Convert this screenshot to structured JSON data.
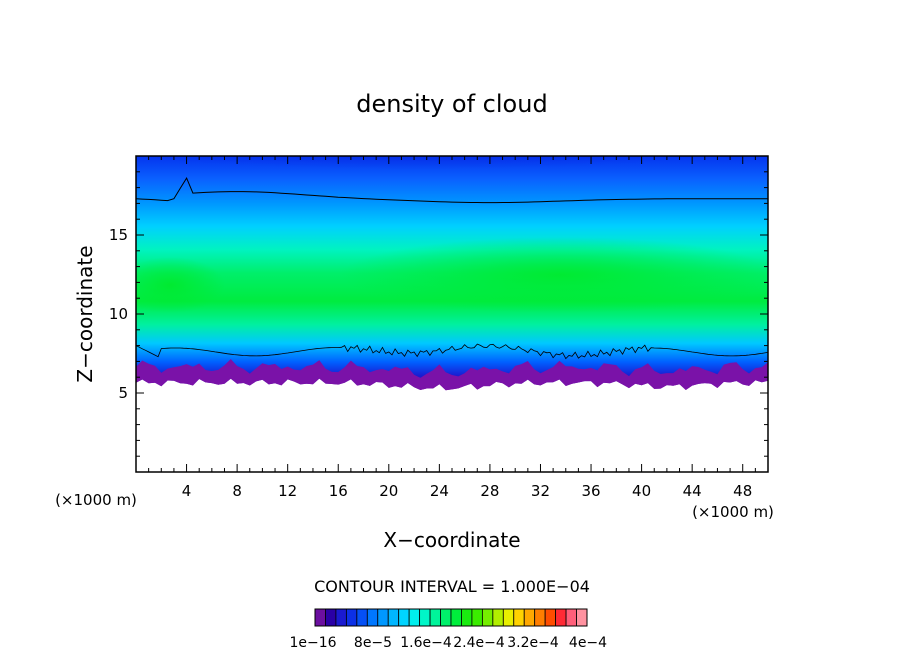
{
  "chart_data": {
    "type": "heatmap",
    "title": "density of cloud",
    "xlabel": "X−coordinate",
    "ylabel": "Z−coordinate",
    "x_unit_left": "(×1000 m)",
    "x_unit_right": "(×1000 m)",
    "xlim": [
      0,
      50
    ],
    "ylim": [
      0,
      20
    ],
    "x_ticks": [
      "4",
      "8",
      "12",
      "16",
      "20",
      "24",
      "28",
      "32",
      "36",
      "40",
      "44",
      "48"
    ],
    "x_tick_values": [
      4,
      8,
      12,
      16,
      20,
      24,
      28,
      32,
      36,
      40,
      44,
      48
    ],
    "y_ticks": [
      "5",
      "10",
      "15"
    ],
    "y_tick_values": [
      5,
      10,
      15
    ],
    "contour_interval_text": "CONTOUR INTERVAL = 1.000E−04",
    "colorbar": {
      "labels": [
        "1e−16",
        "8e−5",
        "1.6e−4",
        "2.4e−4",
        "3.2e−4",
        "4e−4"
      ],
      "min": 1e-16,
      "max": 0.0004,
      "colors": [
        "#6b0fa0",
        "#2a00a6",
        "#1a1ad0",
        "#0c30e6",
        "#0550f5",
        "#0077ff",
        "#0098ff",
        "#00b6ff",
        "#00d4ff",
        "#00efee",
        "#00f6c8",
        "#00f49a",
        "#00f06a",
        "#00ee3c",
        "#1aeb10",
        "#3bec00",
        "#75ee00",
        "#b2ef00",
        "#e8ef00",
        "#ffd200",
        "#ffa800",
        "#ff7e00",
        "#ff4d00",
        "#ff2a35",
        "#ff5f7a",
        "#ff92a0"
      ]
    },
    "cloud_base_km": 6.0,
    "cloud_top_km": 20.0,
    "max_density_zone": "middle of the cloud layer, around z = 11–14 km"
  }
}
